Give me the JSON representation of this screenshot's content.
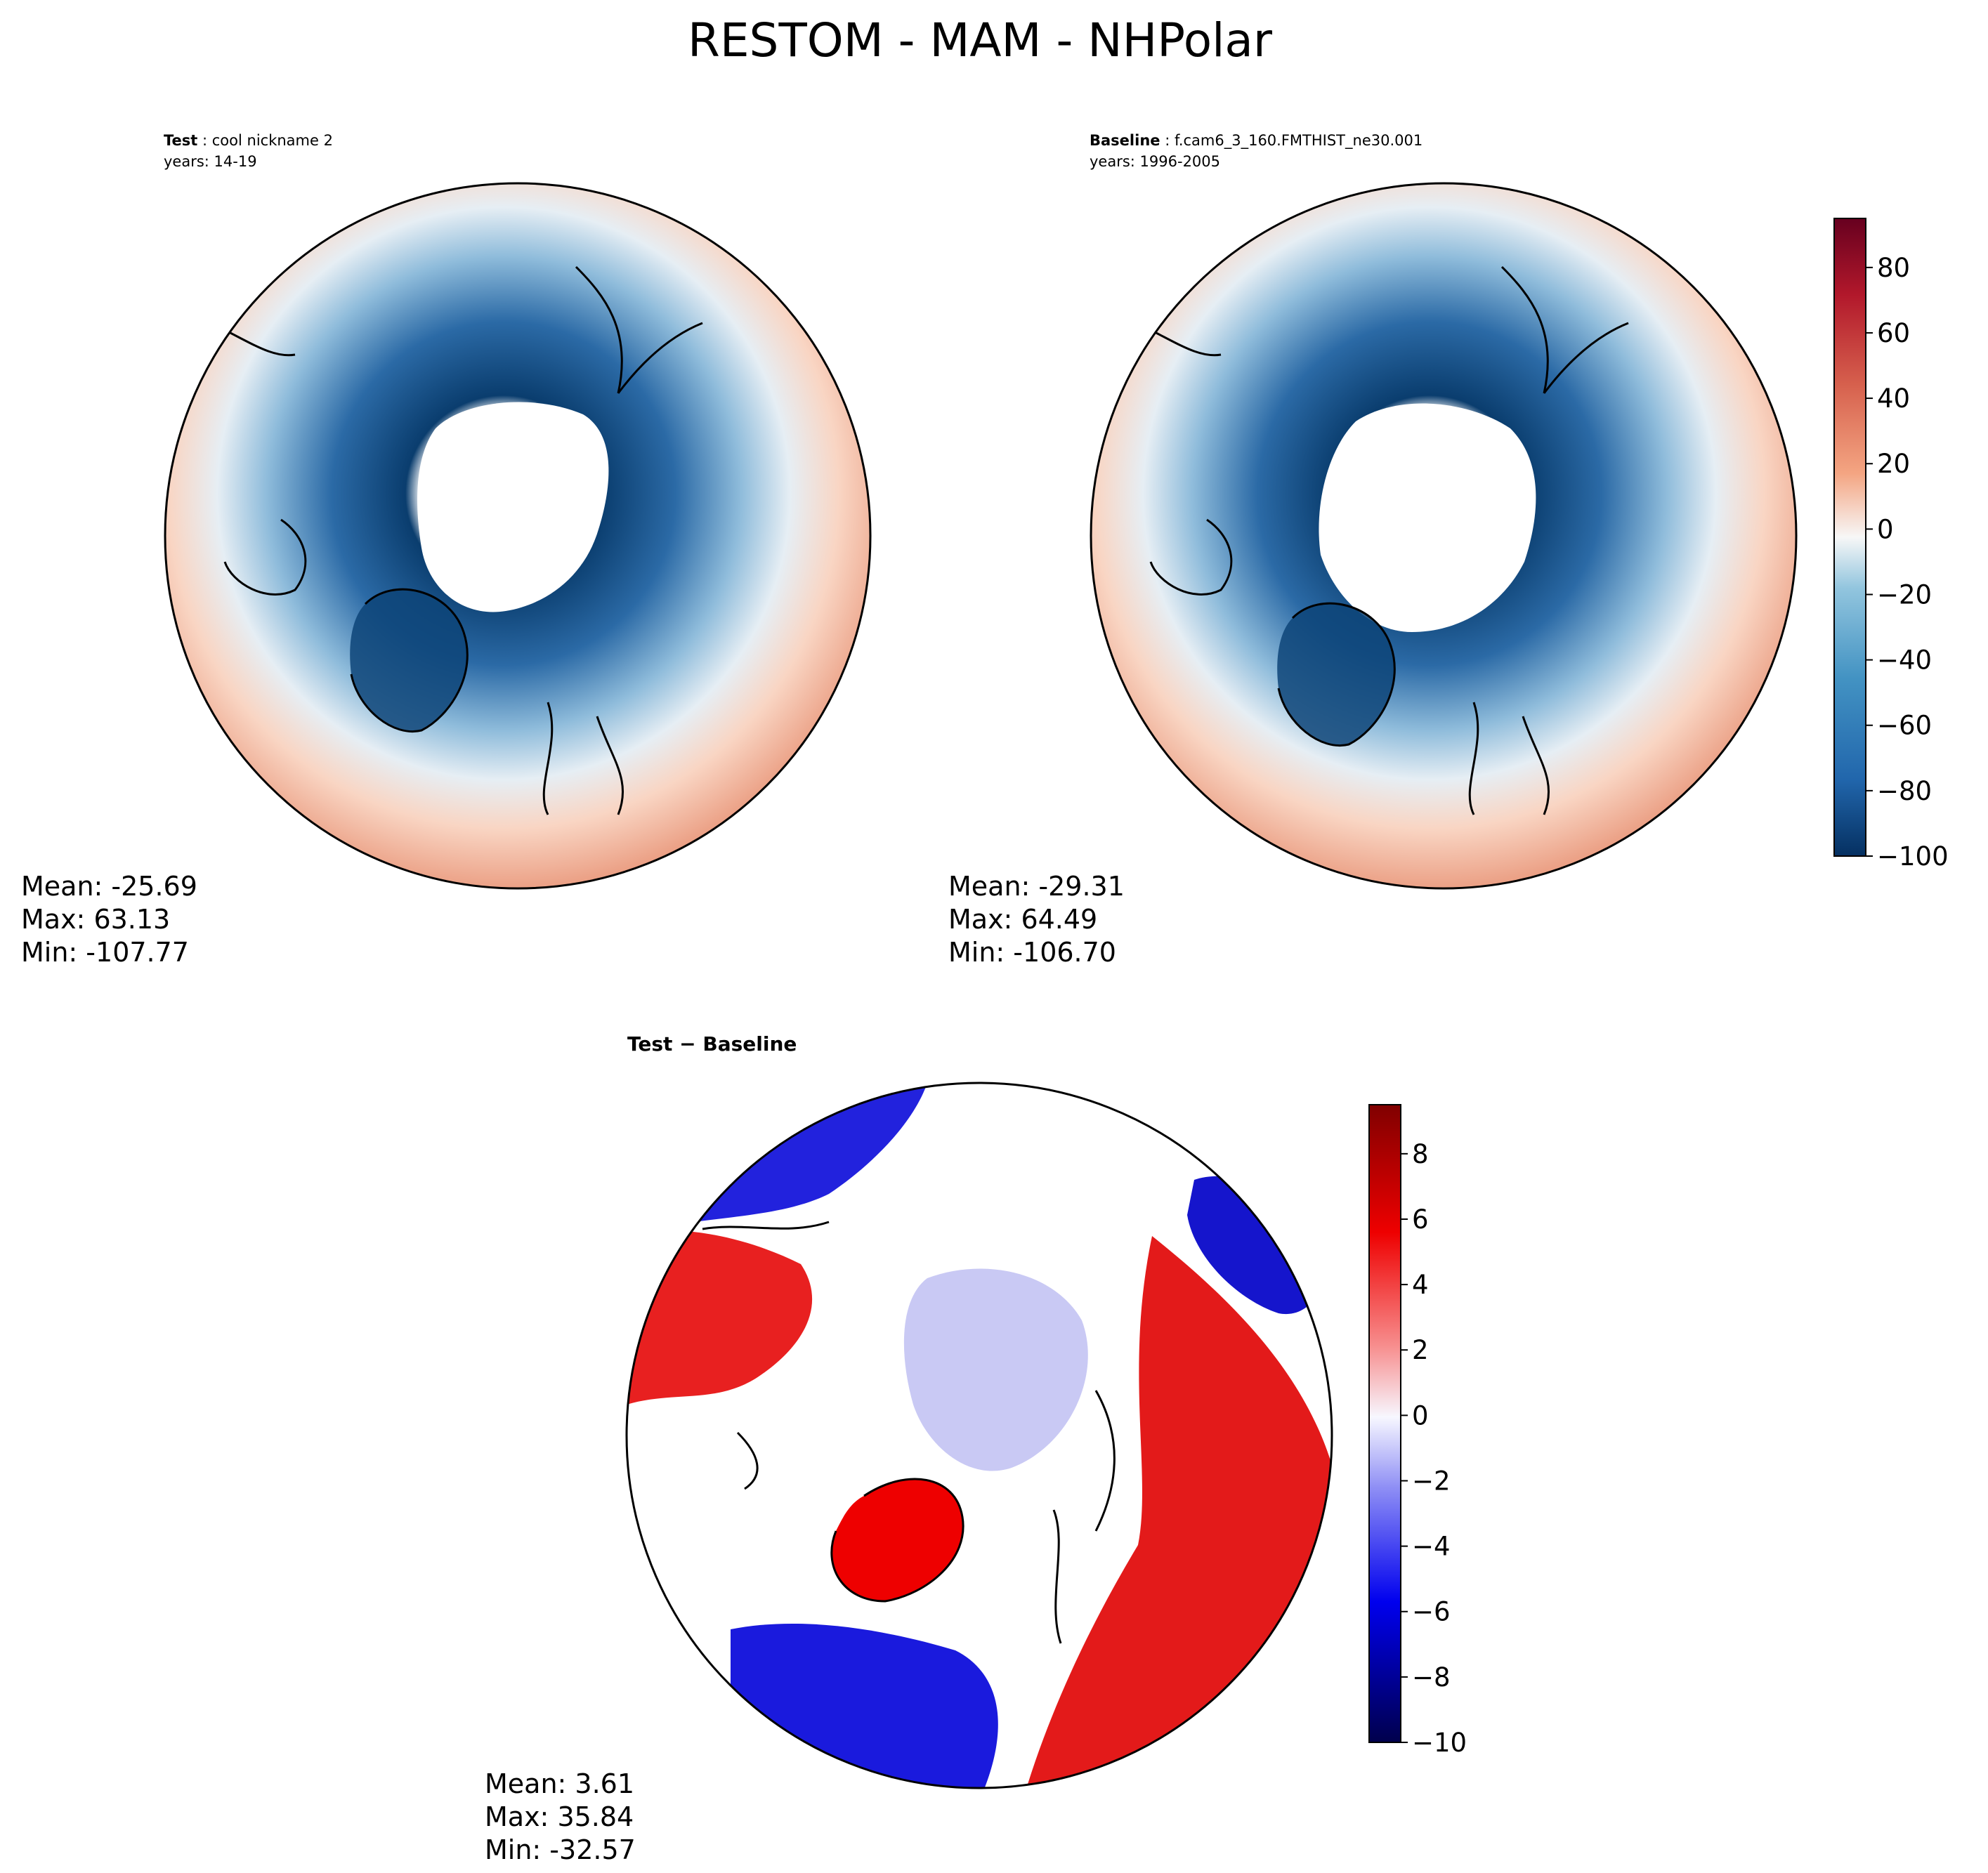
{
  "chart_data": {
    "type": "polar-contour-map-panels",
    "title": "RESTOM - MAM - NHPolar",
    "panels": [
      {
        "name": "test",
        "label_bold": "Test",
        "label_text": "cool nickname 2",
        "years": "years: 14-19",
        "stats": {
          "mean": "Mean: -25.69",
          "max": "Max: 63.13",
          "min": "Min: -107.77"
        }
      },
      {
        "name": "baseline",
        "label_bold": "Baseline",
        "label_text": "f.cam6_3_160.FMTHIST_ne30.001",
        "years": "years: 1996-2005",
        "stats": {
          "mean": "Mean: -29.31",
          "max": "Max: 64.49",
          "min": "Min: -106.70"
        }
      },
      {
        "name": "difference",
        "label_bold": "Test − Baseline",
        "stats": {
          "mean": "Mean:  3.61",
          "max": "Max: 35.84",
          "min": "Min: -32.57"
        }
      }
    ],
    "colorbars": [
      {
        "name": "main",
        "colormap": "RdBu_r",
        "range": [
          -100,
          95
        ],
        "ticks": [
          80,
          60,
          40,
          20,
          0,
          -20,
          -40,
          -60,
          -80,
          -100
        ],
        "tick_labels": [
          "80",
          "60",
          "40",
          "20",
          "0",
          "−20",
          "−40",
          "−60",
          "−80",
          "−100"
        ]
      },
      {
        "name": "diff",
        "colormap": "seismic",
        "range": [
          -10,
          9.5
        ],
        "ticks": [
          8,
          6,
          4,
          2,
          0,
          -2,
          -4,
          -6,
          -8,
          -10
        ],
        "tick_labels": [
          "8",
          "6",
          "4",
          "2",
          "0",
          "−2",
          "−4",
          "−6",
          "−8",
          "−10"
        ]
      }
    ],
    "colors": {
      "deep_blue": "#0a3d6e",
      "mid_blue": "#4d8ec4",
      "light_blue": "#c6dcec",
      "white": "#f7f7f7",
      "light_red": "#f6c4aa",
      "mid_red": "#e58268",
      "red": "#ee0000",
      "blue": "#1a1aee"
    }
  }
}
